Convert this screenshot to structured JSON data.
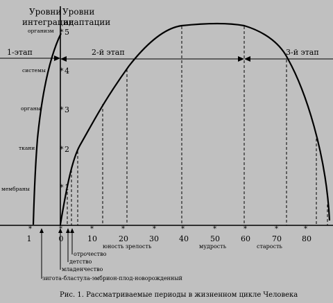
{
  "header": {
    "integration_line1": "Уровни",
    "integration_line2": "интеграции",
    "adaptation_line1": "Уровни",
    "adaptation_line2": "адаптации"
  },
  "levels": [
    {
      "name": "организм",
      "number": "5"
    },
    {
      "name": "системы",
      "number": "4"
    },
    {
      "name": "органы",
      "number": "3"
    },
    {
      "name": "ткани",
      "number": "2"
    },
    {
      "name": "мембраны",
      "number": "1"
    }
  ],
  "stages": {
    "stage1": "1-этап",
    "stage2": "2-й этап",
    "stage3": "3-й этап"
  },
  "age_ticks": [
    "1",
    "0",
    "10",
    "20",
    "30",
    "40",
    "50",
    "60",
    "70",
    "80"
  ],
  "periods": {
    "zygote": "зигота-бластула-эмбрион-плод-новорожденный",
    "infancy": "младенчество",
    "childhood": "детство",
    "adolescence": "отрочество",
    "youth_maturity": "юность зрелость",
    "wisdom": "мудрость",
    "old_age": "старость"
  },
  "caption": "Рис. 1. Рассматриваемые периоды в жизненном цикле Человека"
}
